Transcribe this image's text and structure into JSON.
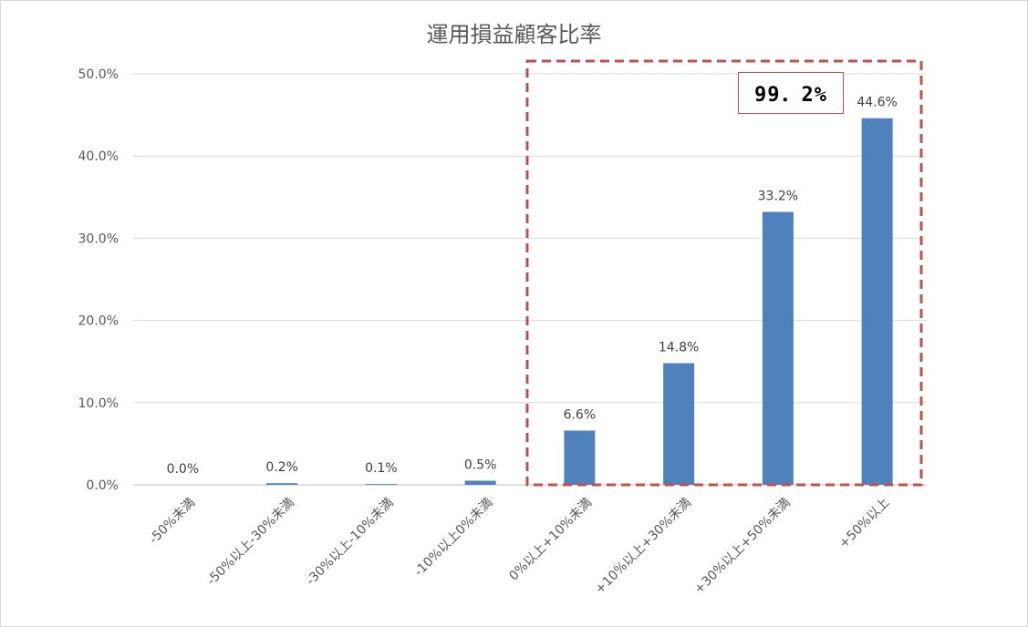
{
  "chart_data": {
    "type": "bar",
    "title": "運用損益顧客比率",
    "categories": [
      "-50%未満",
      "-50%以上-30%未満",
      "-30%以上-10%未満",
      "-10%以上0%未満",
      "0%以上+10%未満",
      "+10%以上+30%未満",
      "+30%以上+50%未満",
      "+50%以上"
    ],
    "values": [
      0.0,
      0.2,
      0.1,
      0.5,
      6.6,
      14.8,
      33.2,
      44.6
    ],
    "data_labels": [
      "0.0%",
      "0.2%",
      "0.1%",
      "0.5%",
      "6.6%",
      "14.8%",
      "33.2%",
      "44.6%"
    ],
    "y_ticks": [
      "0.0%",
      "10.0%",
      "20.0%",
      "30.0%",
      "40.0%",
      "50.0%"
    ],
    "ylim": [
      0,
      50
    ],
    "grid": true,
    "bar_color": "#4f81bd",
    "highlight": {
      "label": "99.2%",
      "display_text": "99．2%",
      "from_category": "0%以上+10%未満",
      "to_category": "+50%以上",
      "color": "#c0504d"
    }
  }
}
